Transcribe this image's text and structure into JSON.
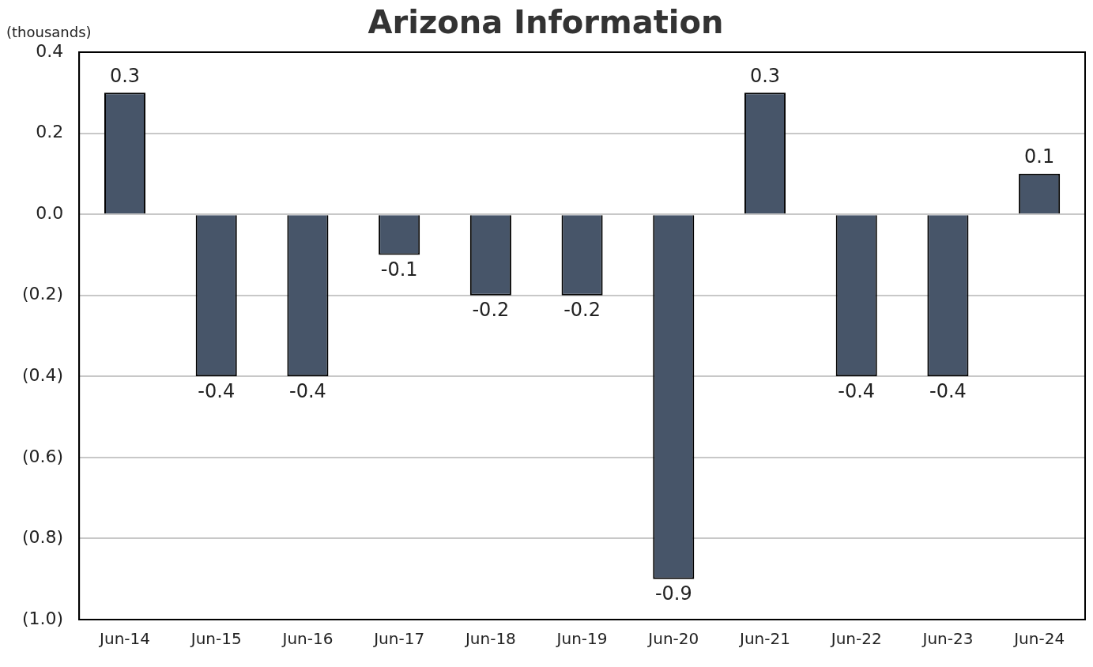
{
  "chart_data": {
    "type": "bar",
    "title": "Arizona Information",
    "ylabel": "(thousands)",
    "categories": [
      "Jun-14",
      "Jun-15",
      "Jun-16",
      "Jun-17",
      "Jun-18",
      "Jun-19",
      "Jun-20",
      "Jun-21",
      "Jun-22",
      "Jun-23",
      "Jun-24"
    ],
    "values": [
      0.3,
      -0.4,
      -0.4,
      -0.1,
      -0.2,
      -0.2,
      -0.9,
      0.3,
      -0.4,
      -0.4,
      0.1
    ],
    "color": "#475569",
    "ylim": [
      -1.0,
      0.4
    ],
    "yticks": [
      {
        "value": 0.4,
        "label": "0.4"
      },
      {
        "value": 0.2,
        "label": "0.2"
      },
      {
        "value": 0,
        "label": "0.0"
      },
      {
        "value": -0.2,
        "label": "(0.2)"
      },
      {
        "value": -0.4,
        "label": "(0.4)"
      },
      {
        "value": -0.6,
        "label": "(0.6)"
      },
      {
        "value": -0.8,
        "label": "(0.8)"
      },
      {
        "value": -1.0,
        "label": "(1.0)"
      }
    ],
    "grid": "y",
    "data_labels": true,
    "legend": false
  }
}
